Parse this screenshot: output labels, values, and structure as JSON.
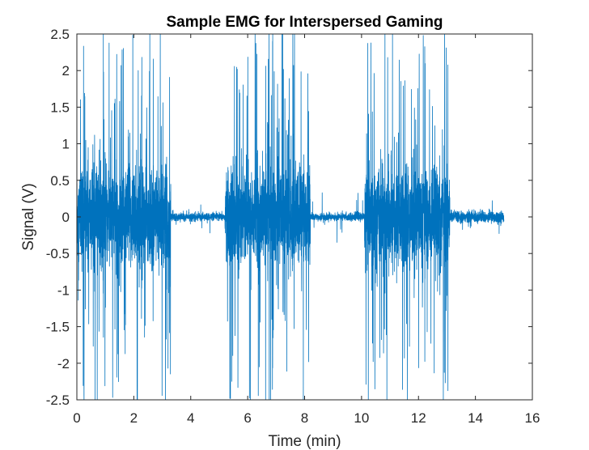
{
  "chart_data": {
    "type": "line",
    "title": "Sample EMG for Interspersed Gaming",
    "xlabel": "Time (min)",
    "ylabel": "Signal (V)",
    "xlim": [
      0,
      16
    ],
    "ylim": [
      -2.5,
      2.5
    ],
    "xticks": [
      0,
      2,
      4,
      6,
      8,
      10,
      12,
      14,
      16
    ],
    "xtick_labels": [
      "0",
      "2",
      "4",
      "6",
      "8",
      "10",
      "12",
      "14",
      "16"
    ],
    "yticks": [
      2.5,
      2,
      1.5,
      1,
      0.5,
      0,
      -0.5,
      -1,
      -1.5,
      -2,
      -2.5
    ],
    "ytick_labels": [
      "2.5",
      "2",
      "1.5",
      "1",
      "0.5",
      "0",
      "-0.5",
      "-1",
      "-1.5",
      "-2",
      "-2.5"
    ],
    "grid": false,
    "line_color": "#0072BD",
    "series": [
      {
        "segments": [
          {
            "x_start": 0,
            "x_end": 3.3,
            "state": "active",
            "typical_amplitude": 0.6,
            "peak_amplitude": 2.5
          },
          {
            "x_start": 3.3,
            "x_end": 5.2,
            "state": "rest",
            "typical_amplitude": 0.05,
            "peak_amplitude": 0.25
          },
          {
            "x_start": 5.2,
            "x_end": 8.2,
            "state": "active",
            "typical_amplitude": 0.6,
            "peak_amplitude": 2.5
          },
          {
            "x_start": 8.2,
            "x_end": 10.1,
            "state": "rest",
            "typical_amplitude": 0.05,
            "peak_amplitude": 0.35
          },
          {
            "x_start": 10.1,
            "x_end": 13.1,
            "state": "active",
            "typical_amplitude": 0.6,
            "peak_amplitude": 2.5
          },
          {
            "x_start": 13.1,
            "x_end": 15.0,
            "state": "rest",
            "typical_amplitude": 0.08,
            "peak_amplitude": 0.3
          }
        ]
      }
    ]
  }
}
